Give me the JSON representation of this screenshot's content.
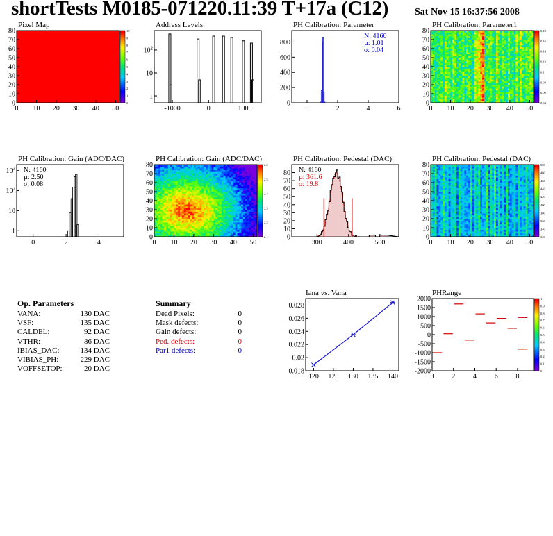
{
  "header": {
    "title": "shortTests M0185-071220.11:39 T+17a (C12)",
    "date": "Sat Nov 15 16:37:56 2008"
  },
  "colors": {
    "hist_line": "#000000",
    "stats_blue": "#0000c8",
    "stats_red": "#d40000",
    "fit_blue": "#1a1acc",
    "pedestal_fill": "#d46a6a",
    "pixel_map_red": "#ff0000"
  },
  "op_params": {
    "heading": "Op. Parameters",
    "rows": [
      {
        "name": "VANA:",
        "value": "130 DAC"
      },
      {
        "name": "VSF:",
        "value": "135 DAC"
      },
      {
        "name": "CALDEL:",
        "value": "92 DAC"
      },
      {
        "name": "VTHR:",
        "value": "86 DAC"
      },
      {
        "name": "IBIAS_DAC:",
        "value": "134 DAC"
      },
      {
        "name": "VIBIAS_PH:",
        "value": "229 DAC"
      },
      {
        "name": "VOFFSETOP:",
        "value": "20 DAC"
      }
    ]
  },
  "summary": {
    "heading": "Summary",
    "rows": [
      {
        "name": "Dead Pixels:",
        "value": "0",
        "color": "black"
      },
      {
        "name": "Mask defects:",
        "value": "0",
        "color": "black"
      },
      {
        "name": "Gain defects:",
        "value": "0",
        "color": "black"
      },
      {
        "name": "Ped. defects:",
        "value": "0",
        "color": "red"
      },
      {
        "name": "Par1 defects:",
        "value": "0",
        "color": "blue"
      }
    ]
  },
  "chart_data": [
    {
      "id": "pixel-map",
      "type": "heatmap",
      "title": "Pixel Map",
      "xlim": [
        0,
        52
      ],
      "ylim": [
        0,
        80
      ],
      "xticks": [
        "0",
        "10",
        "20",
        "30",
        "40",
        "50"
      ],
      "yticks": [
        "0",
        "10",
        "20",
        "30",
        "40",
        "50",
        "60",
        "70",
        "80"
      ],
      "value": 10,
      "zlim": [
        0,
        10
      ],
      "zticks": [
        "0",
        "1",
        "2",
        "3",
        "4",
        "5",
        "6",
        "7",
        "8",
        "9",
        "10"
      ]
    },
    {
      "id": "address-levels",
      "type": "bar",
      "title": "Address Levels",
      "xlim": [
        -1500,
        1450
      ],
      "ylog": true,
      "ylim": [
        0.5,
        700
      ],
      "xticks": [
        "-1000",
        "0",
        "1000"
      ],
      "yticks": [
        "1",
        "10",
        "10^2"
      ],
      "peaks": [
        {
          "x": -1070,
          "height": 500
        },
        {
          "x": -1040,
          "height": 3
        },
        {
          "x": -290,
          "height": 300
        },
        {
          "x": -250,
          "height": 5
        },
        {
          "x": 140,
          "height": 400
        },
        {
          "x": 410,
          "height": 400
        },
        {
          "x": 640,
          "height": 350
        },
        {
          "x": 960,
          "height": 250
        },
        {
          "x": 1180,
          "height": 200
        },
        {
          "x": 1220,
          "height": 5
        }
      ]
    },
    {
      "id": "ph-parameter",
      "type": "bar",
      "title": "PH Calibration: Parameter",
      "xlim": [
        -1,
        6
      ],
      "ylim": [
        0,
        950
      ],
      "xticks": [
        "0",
        "2",
        "4",
        "6"
      ],
      "yticks": [
        "0",
        "200",
        "400",
        "600",
        "800"
      ],
      "stats": {
        "n": "N: 4160",
        "mean": "µ: 1.01",
        "sigma": "σ: 0.04"
      },
      "bins": [
        {
          "x": 0.9,
          "y": 10
        },
        {
          "x": 0.95,
          "y": 170
        },
        {
          "x": 1.0,
          "y": 800
        },
        {
          "x": 1.05,
          "y": 860
        },
        {
          "x": 1.1,
          "y": 140
        },
        {
          "x": 1.15,
          "y": 10
        }
      ]
    },
    {
      "id": "ph-parameter1",
      "type": "heatmap",
      "title": "PH Calibration: Parameter1",
      "xlim": [
        0,
        52
      ],
      "ylim": [
        0,
        80
      ],
      "xticks": [
        "0",
        "10",
        "20",
        "30",
        "40",
        "50"
      ],
      "yticks": [
        "0",
        "10",
        "20",
        "30",
        "40",
        "50",
        "60",
        "70",
        "80"
      ],
      "zticks": [
        "0.04",
        "0.06",
        "0.08",
        "0.1",
        "0.12",
        "0.14",
        "0.16",
        "0.18"
      ]
    },
    {
      "id": "gain-hist",
      "type": "bar",
      "title": "PH Calibration: Gain (ADC/DAC)",
      "xlim": [
        -1,
        5.5
      ],
      "ylog": true,
      "ylim": [
        0.5,
        2000
      ],
      "xticks": [
        "0",
        "2",
        "4"
      ],
      "yticks": [
        "1",
        "10",
        "10^2",
        "10^3"
      ],
      "stats": {
        "n": "N: 4160",
        "mean": "µ: 2.50",
        "sigma": "σ: 0.08"
      },
      "bins": [
        {
          "x": 2.15,
          "y": 1
        },
        {
          "x": 2.25,
          "y": 8
        },
        {
          "x": 2.35,
          "y": 40
        },
        {
          "x": 2.45,
          "y": 150
        },
        {
          "x": 2.55,
          "y": 500
        },
        {
          "x": 2.62,
          "y": 650
        },
        {
          "x": 2.7,
          "y": 2
        }
      ]
    },
    {
      "id": "gain-map",
      "type": "heatmap",
      "title": "PH Calibration: Gain (ADC/DAC)",
      "xlim": [
        0,
        52
      ],
      "ylim": [
        0,
        80
      ],
      "xticks": [
        "0",
        "10",
        "20",
        "30",
        "40",
        "50"
      ],
      "yticks": [
        "0",
        "10",
        "20",
        "30",
        "40",
        "50",
        "60",
        "70",
        "80"
      ],
      "zticks": [
        "2.1",
        "2.2",
        "2.3",
        "2.4",
        "2.5",
        "2.6"
      ]
    },
    {
      "id": "pedestal-hist",
      "type": "bar",
      "title": "PH Calibration: Pedestal (DAC)",
      "xlim": [
        220,
        560
      ],
      "ylim": [
        0,
        90
      ],
      "xticks": [
        "300",
        "400",
        "500"
      ],
      "yticks": [
        "0",
        "10",
        "20",
        "30",
        "40",
        "50",
        "60",
        "70",
        "80"
      ],
      "stats": {
        "n": "N: 4160",
        "mean": "µ: 361.6",
        "sigma": "σ: 19.8"
      },
      "mean": 361.6,
      "sigma": 19.8,
      "peak": 80,
      "cut_lines": [
        322,
        412
      ]
    },
    {
      "id": "pedestal-map",
      "type": "heatmap",
      "title": "PH Calibration: Pedestal (DAC)",
      "xlim": [
        0,
        52
      ],
      "ylim": [
        0,
        80
      ],
      "xticks": [
        "0",
        "10",
        "20",
        "30",
        "40",
        "50"
      ],
      "yticks": [
        "0",
        "10",
        "20",
        "30",
        "40",
        "50",
        "60",
        "70",
        "80"
      ],
      "zticks": [
        "320",
        "340",
        "360",
        "380",
        "400",
        "420",
        "440",
        "460",
        "480",
        "500"
      ]
    },
    {
      "id": "iana-vana",
      "type": "line",
      "title": "Iana vs. Vana",
      "x": [
        120,
        130,
        140
      ],
      "y": [
        0.0189,
        0.0235,
        0.0284
      ],
      "xlim": [
        118,
        141.5
      ],
      "ylim": [
        0.018,
        0.029
      ],
      "xticks": [
        "120",
        "125",
        "130",
        "135",
        "140"
      ],
      "yticks": [
        "0.018",
        "0.02",
        "0.022",
        "0.024",
        "0.026",
        "0.028"
      ]
    },
    {
      "id": "ph-range",
      "type": "scatter",
      "title": "PHRange",
      "xlim": [
        0,
        9.5
      ],
      "ylim": [
        -2000,
        2000
      ],
      "xticks": [
        "0",
        "2",
        "4",
        "6",
        "8"
      ],
      "yticks": [
        "-2000",
        "-1500",
        "-1000",
        "-500",
        "0",
        "500",
        "1000",
        "1500",
        "2000"
      ],
      "zticks": [
        "0",
        "0.1",
        "0.2",
        "0.3",
        "0.4",
        "0.5",
        "0.6",
        "0.7",
        "0.8",
        "0.9",
        "1"
      ],
      "segments": [
        {
          "x": 0,
          "y": -1000
        },
        {
          "x": 1,
          "y": 50
        },
        {
          "x": 2,
          "y": 1700
        },
        {
          "x": 3,
          "y": -300
        },
        {
          "x": 4,
          "y": 1150
        },
        {
          "x": 5,
          "y": 650
        },
        {
          "x": 6,
          "y": 900
        },
        {
          "x": 7,
          "y": 350
        },
        {
          "x": 8,
          "y": 950
        },
        {
          "x": 8,
          "y": -800
        }
      ]
    }
  ]
}
